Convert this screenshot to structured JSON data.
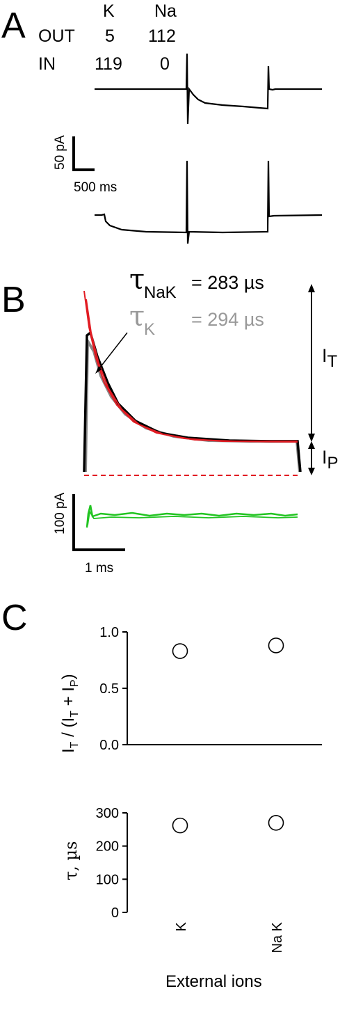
{
  "panel_a": {
    "label": "A",
    "ion_headers": [
      "K",
      "Na"
    ],
    "rows": [
      {
        "label": "OUT",
        "k": "5",
        "na": "112"
      },
      {
        "label": "IN",
        "k": "119",
        "na": "0"
      }
    ],
    "scale_y": "50 pA",
    "scale_x": "500 ms"
  },
  "panel_b": {
    "label": "B",
    "fits": [
      {
        "symbol": "τ",
        "sub": "NaK",
        "value": "= 283 µs",
        "color": "#000000"
      },
      {
        "symbol": "τ",
        "sub": "K",
        "value": "= 294 µs",
        "color": "#999999"
      }
    ],
    "transient_label": "I",
    "transient_sub": "T",
    "persistent_label": "I",
    "persistent_sub": "P",
    "scale_y": "100 pA",
    "scale_x": "1 ms",
    "colors": {
      "trace_k": "#888888",
      "trace_nak": "#000000",
      "fit": "#e11b22",
      "baseline": "#e11b22",
      "residual": "#22c422"
    }
  },
  "chart_data": [
    {
      "type": "scatter",
      "title": "",
      "xlabel": "",
      "ylabel_parts": [
        "I",
        "T",
        " / (I",
        "T",
        " + I",
        "P",
        ")"
      ],
      "categories": [
        "K",
        "Na K"
      ],
      "values": [
        0.83,
        0.88
      ],
      "ylim": [
        0.0,
        1.0
      ],
      "yticks": [
        "0.0",
        "0.5",
        "1.0"
      ],
      "grid": false
    },
    {
      "type": "scatter",
      "title": "",
      "ylabel": "τ, µs",
      "xlabel": "External ions",
      "categories": [
        "K",
        "Na K"
      ],
      "values": [
        262,
        270
      ],
      "ylim": [
        0,
        300
      ],
      "yticks": [
        "0",
        "100",
        "200",
        "300"
      ],
      "grid": false
    }
  ],
  "panel_c": {
    "label": "C"
  }
}
